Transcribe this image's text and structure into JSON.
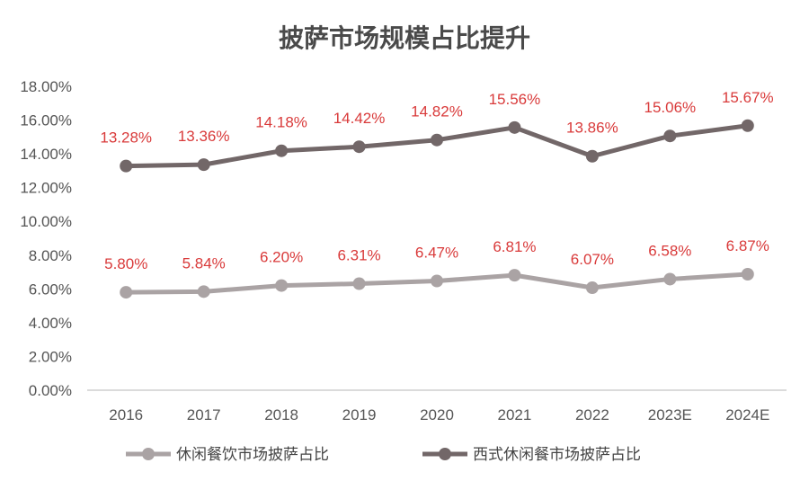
{
  "chart_data": {
    "type": "line",
    "title": "披萨市场规模占比提升",
    "x": [
      "2016",
      "2017",
      "2018",
      "2019",
      "2020",
      "2021",
      "2022",
      "2023E",
      "2024E"
    ],
    "yticks": [
      "0.00%",
      "2.00%",
      "4.00%",
      "6.00%",
      "8.00%",
      "10.00%",
      "12.00%",
      "14.00%",
      "16.00%",
      "18.00%"
    ],
    "ylim": [
      0,
      18
    ],
    "grid": false,
    "legend": "bottom",
    "series": [
      {
        "name": "休闲餐饮市场披萨占比",
        "color": "#aaa3a4",
        "values": [
          5.8,
          5.84,
          6.2,
          6.31,
          6.47,
          6.81,
          6.07,
          6.58,
          6.87
        ],
        "labels": [
          "5.80%",
          "5.84%",
          "6.20%",
          "6.31%",
          "6.47%",
          "6.81%",
          "6.07%",
          "6.58%",
          "6.87%"
        ]
      },
      {
        "name": "西式休闲餐市场披萨占比",
        "color": "#726768",
        "values": [
          13.28,
          13.36,
          14.18,
          14.42,
          14.82,
          15.56,
          13.86,
          15.06,
          15.67
        ],
        "labels": [
          "13.28%",
          "13.36%",
          "14.18%",
          "14.42%",
          "14.82%",
          "15.56%",
          "13.86%",
          "15.06%",
          "15.67%"
        ]
      }
    ],
    "label_color": "#d93a3a"
  }
}
